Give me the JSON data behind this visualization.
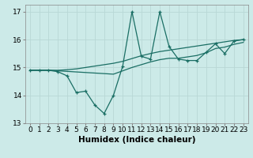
{
  "x": [
    0,
    1,
    2,
    3,
    4,
    5,
    6,
    7,
    8,
    9,
    10,
    11,
    12,
    13,
    14,
    15,
    16,
    17,
    18,
    19,
    20,
    21,
    22,
    23
  ],
  "y_main": [
    14.9,
    14.9,
    14.9,
    14.85,
    14.7,
    14.1,
    14.15,
    13.65,
    13.35,
    14.0,
    15.05,
    17.0,
    15.4,
    15.3,
    17.0,
    15.75,
    15.3,
    15.25,
    15.25,
    15.55,
    15.85,
    15.5,
    15.95,
    16.0
  ],
  "y_upper": [
    14.9,
    14.9,
    14.9,
    14.9,
    14.92,
    14.95,
    15.0,
    15.05,
    15.1,
    15.15,
    15.22,
    15.32,
    15.42,
    15.5,
    15.57,
    15.62,
    15.67,
    15.72,
    15.77,
    15.82,
    15.87,
    15.92,
    15.97,
    16.0
  ],
  "y_lower": [
    14.9,
    14.9,
    14.9,
    14.88,
    14.86,
    14.84,
    14.82,
    14.8,
    14.78,
    14.76,
    14.88,
    15.0,
    15.1,
    15.2,
    15.28,
    15.33,
    15.33,
    15.38,
    15.43,
    15.53,
    15.68,
    15.73,
    15.83,
    15.9
  ],
  "bg_color": "#cceae8",
  "grid_color": "#b8d8d6",
  "line_color": "#1a6e64",
  "xlabel": "Humidex (Indice chaleur)",
  "xlim": [
    -0.5,
    23.5
  ],
  "ylim": [
    13.0,
    17.25
  ],
  "yticks": [
    13,
    14,
    15,
    16,
    17
  ],
  "xticks": [
    0,
    1,
    2,
    3,
    4,
    5,
    6,
    7,
    8,
    9,
    10,
    11,
    12,
    13,
    14,
    15,
    16,
    17,
    18,
    19,
    20,
    21,
    22,
    23
  ],
  "xtick_labels": [
    "0",
    "1",
    "2",
    "3",
    "4",
    "5",
    "6",
    "7",
    "8",
    "9",
    "10",
    "11",
    "12",
    "13",
    "14",
    "15",
    "16",
    "17",
    "18",
    "19",
    "20",
    "21",
    "22",
    "23"
  ],
  "tick_fontsize": 6.5,
  "label_fontsize": 7.5
}
